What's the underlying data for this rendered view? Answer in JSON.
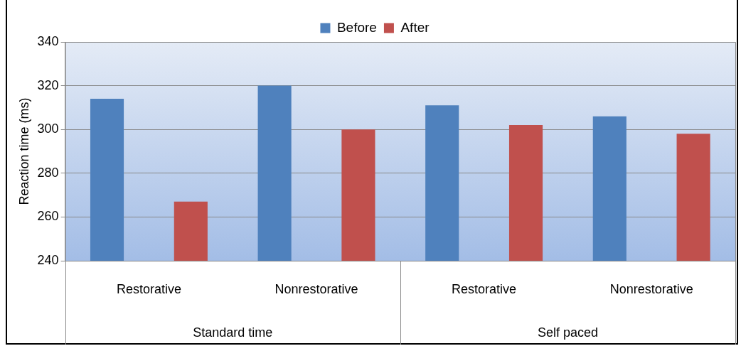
{
  "chart_data": {
    "type": "bar",
    "ylabel": "Reaction time (ms)",
    "categories": [
      "Restorative",
      "Nonrestorative",
      "Restorative",
      "Nonrestorative"
    ],
    "series": [
      {
        "name": "Before",
        "color": "#4f81bd",
        "values": [
          314,
          320,
          311,
          306
        ]
      },
      {
        "name": "After",
        "color": "#c0504d",
        "values": [
          267,
          300,
          302,
          298
        ]
      }
    ],
    "ylim": [
      240,
      340
    ],
    "yticks": [
      240,
      260,
      280,
      300,
      320,
      340
    ],
    "grid": "y",
    "legend": "top",
    "annotations": [
      "Standard time",
      "Self paced"
    ]
  }
}
